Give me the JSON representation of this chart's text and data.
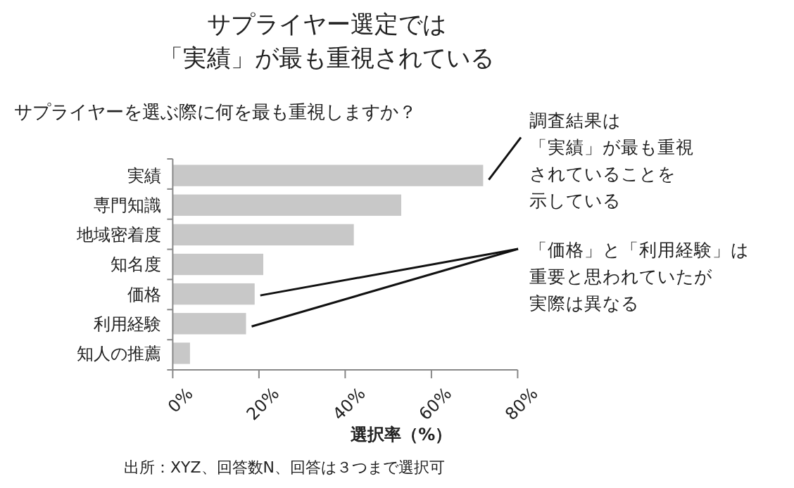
{
  "chart_data": {
    "type": "bar",
    "orientation": "horizontal",
    "title": "サプライヤー選定では「実績」が最も重視されている",
    "subtitle": "サプライヤーを選ぶ際に何を最も重視しますか？",
    "xlabel": "選択率（%）",
    "categories": [
      "実績",
      "専門知識",
      "地域密着度",
      "知名度",
      "価格",
      "利用経験",
      "知人の推薦"
    ],
    "values": [
      72,
      53,
      42,
      21,
      19,
      17,
      4
    ],
    "color": "#c8c8c8",
    "xlim": [
      0,
      80
    ],
    "xticks": [
      {
        "value": 0,
        "label": "0%"
      },
      {
        "value": 20,
        "label": "20%"
      },
      {
        "value": 40,
        "label": "40%"
      },
      {
        "value": 60,
        "label": "60%"
      },
      {
        "value": 80,
        "label": "80%"
      }
    ],
    "grid": false,
    "annotations": [
      {
        "text": "調査結果は「実績」が最も重視されていることを示している",
        "x": 72,
        "y": "実績"
      },
      {
        "text": "「価格」と「利用経験」は重要と思われていたが実際は異なる",
        "x": 19,
        "y": "価格"
      },
      "出所：XYZ、回答数N、回答は３つまで選択可"
    ]
  }
}
